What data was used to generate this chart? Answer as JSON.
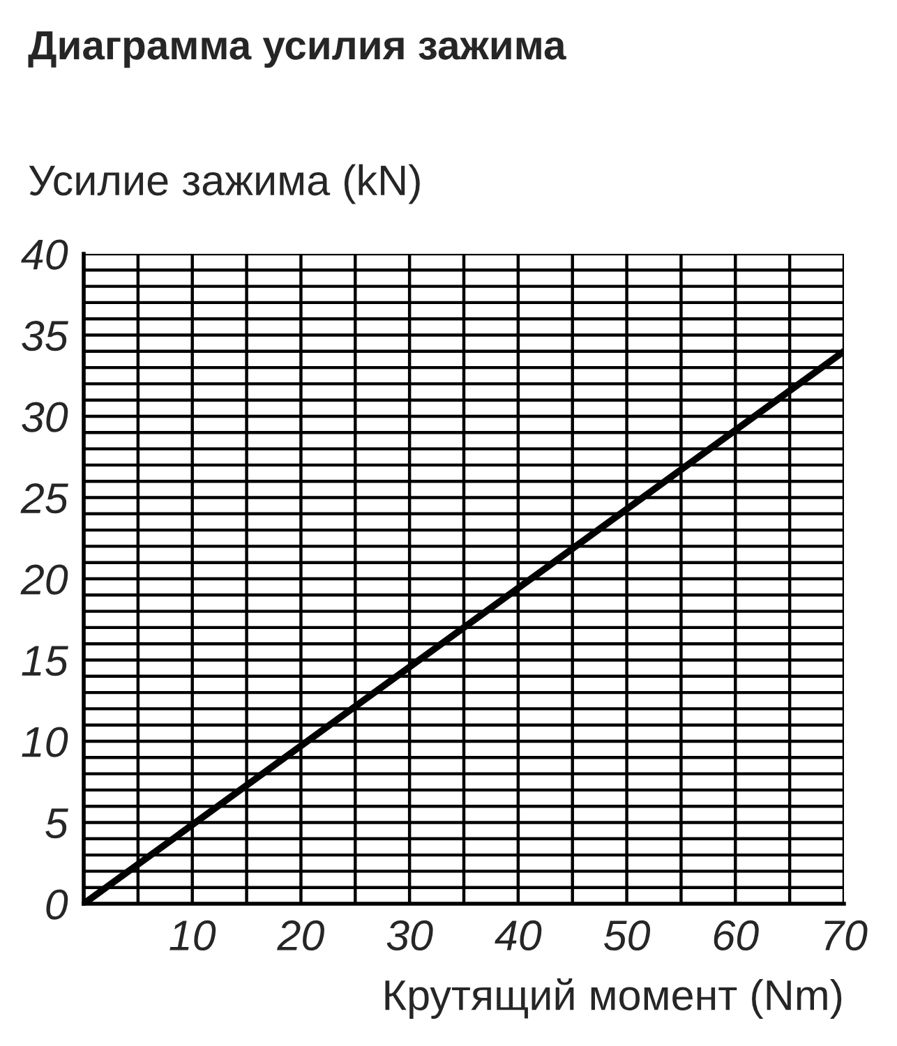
{
  "chart_data": {
    "type": "line",
    "title": "Диаграмма усилия зажима",
    "xlabel": "Крутящий момент (Nm)",
    "ylabel": "Усилие зажима (kN)",
    "x": [
      0,
      70
    ],
    "series": [
      {
        "color": "#000000",
        "values": [
          0,
          34
        ]
      }
    ],
    "xlim": [
      0,
      70
    ],
    "ylim": [
      0,
      40
    ],
    "xticks": [
      {
        "value": 0,
        "label": null
      },
      {
        "value": 5,
        "label": null
      },
      10,
      {
        "value": 15,
        "label": null
      },
      20,
      {
        "value": 25,
        "label": null
      },
      30,
      {
        "value": 35,
        "label": null
      },
      40,
      {
        "value": 45,
        "label": null
      },
      50,
      {
        "value": 55,
        "label": null
      },
      60,
      {
        "value": 65,
        "label": null
      },
      70
    ],
    "yticks": [
      0,
      {
        "value": 1,
        "label": null
      },
      {
        "value": 2,
        "label": null
      },
      {
        "value": 3,
        "label": null
      },
      {
        "value": 4,
        "label": null
      },
      5,
      {
        "value": 6,
        "label": null
      },
      {
        "value": 7,
        "label": null
      },
      {
        "value": 8,
        "label": null
      },
      {
        "value": 9,
        "label": null
      },
      10,
      {
        "value": 11,
        "label": null
      },
      {
        "value": 12,
        "label": null
      },
      {
        "value": 13,
        "label": null
      },
      {
        "value": 14,
        "label": null
      },
      15,
      {
        "value": 16,
        "label": null
      },
      {
        "value": 17,
        "label": null
      },
      {
        "value": 18,
        "label": null
      },
      {
        "value": 19,
        "label": null
      },
      20,
      {
        "value": 21,
        "label": null
      },
      {
        "value": 22,
        "label": null
      },
      {
        "value": 23,
        "label": null
      },
      {
        "value": 24,
        "label": null
      },
      25,
      {
        "value": 26,
        "label": null
      },
      {
        "value": 27,
        "label": null
      },
      {
        "value": 28,
        "label": null
      },
      {
        "value": 29,
        "label": null
      },
      30,
      {
        "value": 31,
        "label": null
      },
      {
        "value": 32,
        "label": null
      },
      {
        "value": 33,
        "label": null
      },
      {
        "value": 34,
        "label": null
      },
      35,
      {
        "value": 36,
        "label": null
      },
      {
        "value": 37,
        "label": null
      },
      {
        "value": 38,
        "label": null
      },
      {
        "value": 39,
        "label": null
      },
      40
    ],
    "grid": true,
    "marker": "none",
    "line_style": "solid"
  }
}
